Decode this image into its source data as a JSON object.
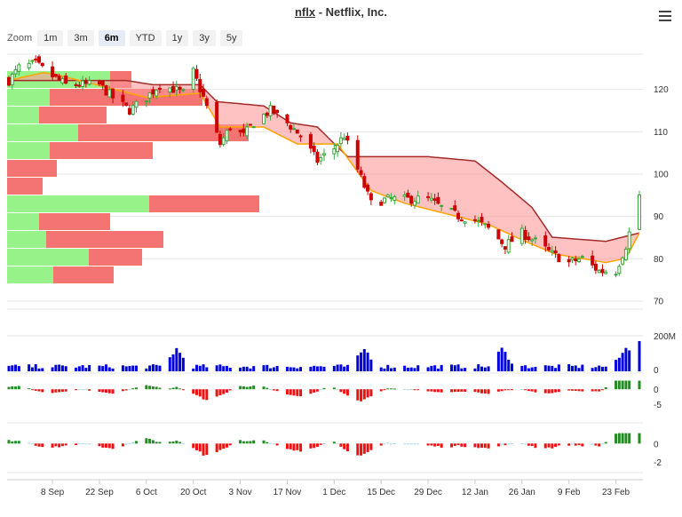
{
  "header": {
    "symbol": "nflx",
    "separator": " - ",
    "company": "Netflix, Inc.",
    "menu_icon": "hamburger-menu-icon"
  },
  "zoom": {
    "label": "Zoom",
    "buttons": [
      {
        "label": "1m"
      },
      {
        "label": "3m"
      },
      {
        "label": "6m",
        "active": true
      },
      {
        "label": "YTD"
      },
      {
        "label": "1y"
      },
      {
        "label": "3y"
      },
      {
        "label": "5y"
      }
    ]
  },
  "colors": {
    "up_candle": "#3aa63a",
    "down_candle": "#cc0000",
    "ribbon_fill": "#ff9a9a",
    "upper_line": "#a52a2a",
    "lower_line": "#ffa500",
    "volume_profile_up": "#98f28a",
    "volume_profile_down": "#f47373",
    "volume_bars": "#0000dd",
    "osc_up": "#228b22",
    "osc_down": "#ee1111",
    "osc_neutral": "#9fd8ef"
  },
  "chart_data": [
    {
      "type": "candlestick",
      "panel": "price",
      "y_ticks": [
        120,
        110,
        100,
        90,
        80,
        70
      ],
      "ylim": [
        68,
        128
      ],
      "x_ticks": [
        "8 Sep",
        "22 Sep",
        "6 Oct",
        "20 Oct",
        "3 Nov",
        "17 Nov",
        "1 Dec",
        "15 Dec",
        "29 Dec",
        "12 Jan",
        "26 Jan",
        "9 Feb",
        "23 Feb"
      ],
      "start_date": "2014-08-26",
      "end_date": "2015-03-02",
      "close_anchors": [
        [
          "2014-08-26",
          122
        ],
        [
          "2014-08-29",
          125
        ],
        [
          "2014-09-03",
          126
        ],
        [
          "2014-09-08",
          123
        ],
        [
          "2014-09-12",
          121
        ],
        [
          "2014-09-17",
          121
        ],
        [
          "2014-09-22",
          121
        ],
        [
          "2014-09-26",
          118
        ],
        [
          "2014-10-01",
          115
        ],
        [
          "2014-10-06",
          118
        ],
        [
          "2014-10-10",
          121
        ],
        [
          "2014-10-14",
          120
        ],
        [
          "2014-10-17",
          119
        ],
        [
          "2014-10-20",
          124
        ],
        [
          "2014-10-23",
          118
        ],
        [
          "2014-10-28",
          107
        ],
        [
          "2014-10-31",
          111
        ],
        [
          "2014-11-04",
          109
        ],
        [
          "2014-11-07",
          112
        ],
        [
          "2014-11-12",
          115
        ],
        [
          "2014-11-17",
          112
        ],
        [
          "2014-11-21",
          109
        ],
        [
          "2014-11-26",
          103
        ],
        [
          "2014-12-01",
          106
        ],
        [
          "2014-12-04",
          109
        ],
        [
          "2014-12-09",
          99
        ],
        [
          "2014-12-12",
          93
        ],
        [
          "2014-12-17",
          94
        ],
        [
          "2014-12-22",
          94
        ],
        [
          "2014-12-29",
          94
        ],
        [
          "2015-01-02",
          92
        ],
        [
          "2015-01-07",
          90
        ],
        [
          "2015-01-12",
          89
        ],
        [
          "2015-01-16",
          87
        ],
        [
          "2015-01-21",
          83
        ],
        [
          "2015-01-26",
          86
        ],
        [
          "2015-01-30",
          84
        ],
        [
          "2015-02-04",
          81
        ],
        [
          "2015-02-09",
          79
        ],
        [
          "2015-02-13",
          80
        ],
        [
          "2015-02-18",
          77
        ],
        [
          "2015-02-23",
          77
        ],
        [
          "2015-02-26",
          83
        ],
        [
          "2015-03-02",
          95
        ]
      ],
      "upper_band_anchors": [
        [
          "2014-08-26",
          122
        ],
        [
          "2014-09-30",
          122
        ],
        [
          "2014-10-08",
          121
        ],
        [
          "2014-10-22",
          121
        ],
        [
          "2014-10-27",
          117
        ],
        [
          "2014-11-10",
          116
        ],
        [
          "2014-11-18",
          112
        ],
        [
          "2014-11-26",
          111
        ],
        [
          "2014-12-05",
          104
        ],
        [
          "2014-12-29",
          104
        ],
        [
          "2015-01-12",
          103
        ],
        [
          "2015-01-20",
          98
        ],
        [
          "2015-01-29",
          92
        ],
        [
          "2015-02-04",
          85
        ],
        [
          "2015-02-20",
          84
        ],
        [
          "2015-03-02",
          86
        ]
      ],
      "lower_band_anchors": [
        [
          "2014-08-26",
          122
        ],
        [
          "2014-09-06",
          124
        ],
        [
          "2014-09-26",
          120
        ],
        [
          "2014-10-06",
          118
        ],
        [
          "2014-10-22",
          119
        ],
        [
          "2014-10-28",
          111
        ],
        [
          "2014-11-10",
          111
        ],
        [
          "2014-11-20",
          107
        ],
        [
          "2014-12-02",
          107
        ],
        [
          "2014-12-12",
          96
        ],
        [
          "2014-12-22",
          93
        ],
        [
          "2015-01-06",
          90
        ],
        [
          "2015-01-16",
          88
        ],
        [
          "2015-01-27",
          84
        ],
        [
          "2015-02-05",
          81
        ],
        [
          "2015-02-20",
          79
        ],
        [
          "2015-02-26",
          80
        ],
        [
          "2015-03-02",
          86
        ]
      ],
      "volume_profile": [
        {
          "up": 0.29,
          "down": 0.06
        },
        {
          "up": 0.12,
          "down": 0.43
        },
        {
          "up": 0.09,
          "down": 0.19
        },
        {
          "up": 0.2,
          "down": 0.48
        },
        {
          "up": 0.12,
          "down": 0.29
        },
        {
          "up": 0.0,
          "down": 0.14
        },
        {
          "up": 0.0,
          "down": 0.1
        },
        {
          "up": 0.4,
          "down": 0.31
        },
        {
          "up": 0.09,
          "down": 0.2
        },
        {
          "up": 0.11,
          "down": 0.33
        },
        {
          "up": 0.23,
          "down": 0.15
        },
        {
          "up": 0.13,
          "down": 0.17
        }
      ]
    },
    {
      "type": "bar",
      "panel": "volume",
      "y_ticks": [
        "200M",
        "0"
      ],
      "ylim": [
        0,
        200000000
      ],
      "spike_dates": [
        "2014-10-15",
        "2014-12-10",
        "2015-01-20",
        "2015-02-26",
        "2015-03-02"
      ]
    },
    {
      "type": "bar",
      "panel": "oscillator",
      "y_ticks": [
        0,
        -5
      ],
      "ylim": [
        -7,
        3
      ]
    },
    {
      "type": "bar",
      "panel": "oscillator",
      "y_ticks": [
        0,
        -2
      ],
      "ylim": [
        -2.8,
        1.2
      ]
    }
  ]
}
